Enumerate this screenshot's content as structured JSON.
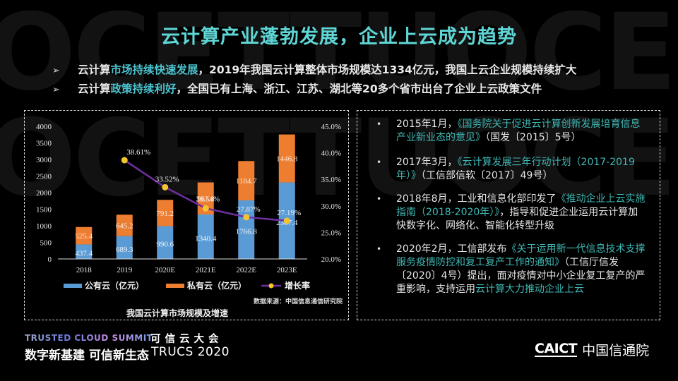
{
  "slide": {
    "title": "云计算产业蓬勃发展，企业上云成为趋势",
    "watermark": [
      "OCETTUOCE",
      "OCETTUOCE",
      "OCETTUOCE"
    ]
  },
  "bullets": [
    {
      "marker": "➢",
      "parts": [
        {
          "text": "云计算",
          "highlight": false
        },
        {
          "text": "市场持续快速发展",
          "highlight": true
        },
        {
          "text": "，2019年我国云计算整体市场规模达1334亿元，我国上云企业规模持续扩大",
          "highlight": false
        }
      ]
    },
    {
      "marker": "➢",
      "parts": [
        {
          "text": "云计算",
          "highlight": false
        },
        {
          "text": "政策持续利好",
          "highlight": true
        },
        {
          "text": "，全国已有上海、浙江、江苏、湖北等20多个省市出台了企业上云政策文件",
          "highlight": false
        }
      ]
    }
  ],
  "chart_data": {
    "type": "bar",
    "stacked": true,
    "title": "我国云计算市场规模及增速",
    "source": "数据来源：中国信息通信研究院",
    "categories": [
      "2018",
      "2019",
      "2020E",
      "2021E",
      "2022E",
      "2023E"
    ],
    "series": [
      {
        "name": "公有云（亿元）",
        "kind": "bar",
        "axis": "left",
        "color": "#5b9bd5",
        "values": [
          437.4,
          689.3,
          990.6,
          1340.4,
          1766.8,
          2307.4
        ]
      },
      {
        "name": "私有云（亿元）",
        "kind": "bar",
        "axis": "left",
        "color": "#ed7d31",
        "values": [
          525.4,
          645.2,
          791.2,
          967.8,
          1184.7,
          1446.8
        ]
      },
      {
        "name": "增长率",
        "kind": "line",
        "axis": "right",
        "color": "#7030a0",
        "marker_color": "#f5c431",
        "values": [
          null,
          38.61,
          33.52,
          29.54,
          27.87,
          27.19
        ],
        "labels": [
          "",
          "38.61%",
          "33.52%",
          "29.54%",
          "27.87%",
          "27.19%"
        ]
      }
    ],
    "y_left": {
      "min": 0,
      "max": 4000,
      "step": 500,
      "ticks": [
        "0",
        "500",
        "1000",
        "1500",
        "2000",
        "2500",
        "3000",
        "3500",
        "4000"
      ]
    },
    "y_right": {
      "min": 20,
      "max": 45,
      "step": 5,
      "ticks": [
        "20.0%",
        "25.0%",
        "30.0%",
        "35.0%",
        "40.0%",
        "45.0%"
      ]
    },
    "legend": {
      "position": "bottom",
      "items": [
        "公有云（亿元）",
        "私有云（亿元）",
        "增长率"
      ]
    },
    "grid": false
  },
  "policies": [
    {
      "prefix": "2015年1月，",
      "doc": "《国务院关于促进云计算创新发展培育信息产业新业态的意见》",
      "suffix": "（国发〔2015〕5号）",
      "tail_hl": ""
    },
    {
      "prefix": "2017年3月，",
      "doc": "《云计算发展三年行动计划（2017-2019年）》",
      "suffix": "（工信部信软〔2017〕49号）",
      "tail_hl": ""
    },
    {
      "prefix": "2018年8月，工业和信息化部印发了",
      "doc": "《推动企业上云实施指南（2018-2020年）》",
      "suffix": "，指导和促进企业运用云计算加快数字化、网络化、智能化转型升级",
      "tail_hl": ""
    },
    {
      "prefix": "2020年2月，工信部发布",
      "doc": "《关于运用新一代信息技术支撑服务疫情防控和复工复产工作的通知》",
      "suffix": "（工信厅信发〔2020〕4号）提出，面对疫情对中小企业复工复产的严重影响，支持运用",
      "tail_hl": "云计算大力推动企业上云"
    }
  ],
  "footer": {
    "summit_en": "TRUSTED CLOUD SUMMIT",
    "summit_cn": "可信云大会",
    "slogan": "数字新基建 可信新生态",
    "event": "TRUCS 2020",
    "logo_en": "CAICT",
    "logo_cn": "中国信通院"
  }
}
